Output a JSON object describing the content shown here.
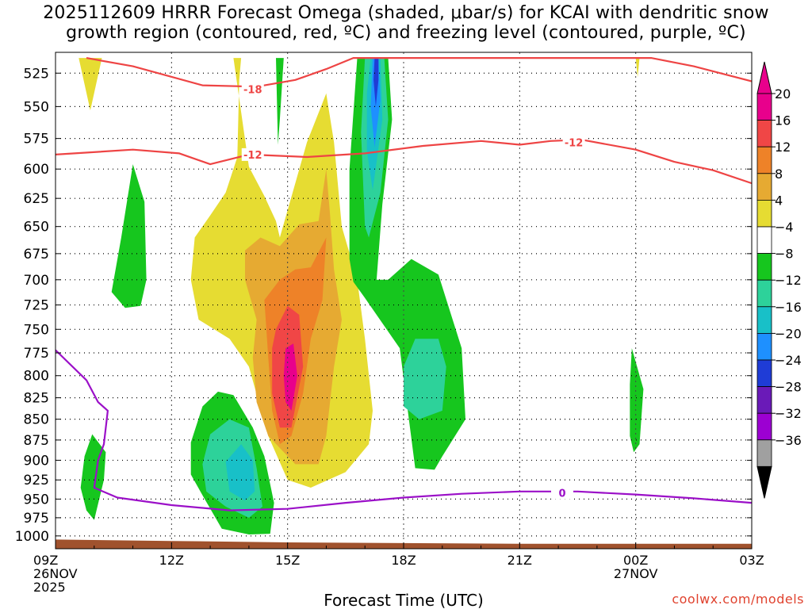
{
  "title": {
    "line1": "2025112609 HRRR Forecast Omega (shaded, μbar/s) for KCAI with dendritic snow",
    "line2": "growth region (contoured, red, ºC) and freezing level (contoured, purple, ºC)"
  },
  "credit": "coolwx.com/models",
  "chart_data": {
    "type": "time-height contour",
    "xlabel": "Forecast Time (UTC)",
    "x_range_hours": [
      0,
      18
    ],
    "x_ticks": [
      {
        "h": 0,
        "lines": [
          "09Z",
          "26NOV",
          "2025"
        ]
      },
      {
        "h": 3,
        "lines": [
          "12Z"
        ]
      },
      {
        "h": 6,
        "lines": [
          "15Z"
        ]
      },
      {
        "h": 9,
        "lines": [
          "18Z"
        ]
      },
      {
        "h": 12,
        "lines": [
          "21Z"
        ]
      },
      {
        "h": 15,
        "lines": [
          "00Z",
          "27NOV"
        ]
      },
      {
        "h": 18,
        "lines": [
          "03Z"
        ]
      }
    ],
    "y_ticks": [
      525,
      550,
      575,
      600,
      625,
      650,
      675,
      700,
      725,
      750,
      775,
      800,
      825,
      850,
      875,
      900,
      925,
      950,
      975,
      1000
    ],
    "y_range_mb": [
      510,
      1018
    ],
    "y_scale": "log-pressure",
    "grid": true,
    "colorbar": {
      "ticks": [
        "20",
        "16",
        "12",
        "8",
        "4",
        "−4",
        "−8",
        "−12",
        "−16",
        "−20",
        "−24",
        "−28",
        "−32",
        "−36"
      ],
      "bins": [
        {
          "range": [
            -36,
            -32
          ],
          "color": "#a0a0a0"
        },
        {
          "range": [
            -32,
            -28
          ],
          "color": "#9c00d2"
        },
        {
          "range": [
            -28,
            -24
          ],
          "color": "#6a1ab8"
        },
        {
          "range": [
            -24,
            -20
          ],
          "color": "#1f3cd6"
        },
        {
          "range": [
            -20,
            -16
          ],
          "color": "#1e90ff"
        },
        {
          "range": [
            -16,
            -12
          ],
          "color": "#18c0c8"
        },
        {
          "range": [
            -12,
            -8
          ],
          "color": "#2dd29a"
        },
        {
          "range": [
            -8,
            -4
          ],
          "color": "#16c61e"
        },
        {
          "range": [
            -4,
            4
          ],
          "color": "#ffffff"
        },
        {
          "range": [
            4,
            8
          ],
          "color": "#e6dc32"
        },
        {
          "range": [
            8,
            12
          ],
          "color": "#e6aa32"
        },
        {
          "range": [
            12,
            16
          ],
          "color": "#ee8228"
        },
        {
          "range": [
            16,
            20
          ],
          "color": "#f04646"
        },
        {
          "range": [
            20,
            24
          ],
          "color": "#e8008c"
        }
      ],
      "below_color": "#000000",
      "above_color": "#e8008c"
    },
    "shaded_regions": [
      {
        "value_bin": [
          4,
          8
        ],
        "points": [
          [
            0.6,
            514
          ],
          [
            0.9,
            553
          ],
          [
            1.2,
            514
          ]
        ]
      },
      {
        "value_bin": [
          4,
          8
        ],
        "points": [
          [
            15.0,
            514
          ],
          [
            15.05,
            528
          ],
          [
            15.1,
            514
          ]
        ]
      },
      {
        "value_bin": [
          4,
          8
        ],
        "points": [
          [
            4.6,
            514
          ],
          [
            5.0,
            598
          ],
          [
            5.4,
            623
          ],
          [
            5.7,
            645
          ],
          [
            5.8,
            660
          ],
          [
            6.5,
            578
          ],
          [
            7.0,
            540
          ],
          [
            7.2,
            578
          ],
          [
            7.4,
            650
          ],
          [
            7.8,
            700
          ],
          [
            8.0,
            760
          ],
          [
            8.2,
            840
          ],
          [
            8.1,
            880
          ],
          [
            7.5,
            915
          ],
          [
            6.6,
            935
          ],
          [
            6.0,
            925
          ],
          [
            5.5,
            870
          ],
          [
            5.0,
            790
          ],
          [
            4.5,
            760
          ],
          [
            3.7,
            740
          ],
          [
            3.5,
            700
          ],
          [
            3.6,
            660
          ],
          [
            4.0,
            640
          ],
          [
            4.4,
            620
          ],
          [
            4.7,
            590
          ],
          [
            4.75,
            530
          ],
          [
            4.8,
            514
          ]
        ]
      },
      {
        "value_bin": [
          8,
          12
        ],
        "points": [
          [
            4.9,
            672
          ],
          [
            5.3,
            660
          ],
          [
            5.8,
            668
          ],
          [
            6.3,
            648
          ],
          [
            6.8,
            645
          ],
          [
            7.0,
            600
          ],
          [
            7.1,
            640
          ],
          [
            7.2,
            690
          ],
          [
            7.4,
            740
          ],
          [
            7.2,
            790
          ],
          [
            7.0,
            870
          ],
          [
            6.8,
            905
          ],
          [
            6.2,
            905
          ],
          [
            5.5,
            870
          ],
          [
            5.2,
            830
          ],
          [
            5.1,
            780
          ],
          [
            5.2,
            740
          ],
          [
            4.9,
            700
          ]
        ]
      },
      {
        "value_bin": [
          12,
          16
        ],
        "points": [
          [
            5.4,
            720
          ],
          [
            5.8,
            700
          ],
          [
            6.2,
            690
          ],
          [
            6.6,
            688
          ],
          [
            7.0,
            660
          ],
          [
            6.9,
            720
          ],
          [
            6.6,
            760
          ],
          [
            6.4,
            820
          ],
          [
            6.1,
            870
          ],
          [
            5.8,
            880
          ],
          [
            5.6,
            840
          ],
          [
            5.5,
            780
          ]
        ]
      },
      {
        "value_bin": [
          16,
          20
        ],
        "points": [
          [
            5.7,
            750
          ],
          [
            6.0,
            726
          ],
          [
            6.3,
            735
          ],
          [
            6.4,
            790
          ],
          [
            6.1,
            860
          ],
          [
            5.8,
            860
          ],
          [
            5.6,
            820
          ],
          [
            5.6,
            770
          ]
        ]
      },
      {
        "value_bin": [
          20,
          24
        ],
        "points": [
          [
            5.95,
            770
          ],
          [
            6.15,
            765
          ],
          [
            6.25,
            800
          ],
          [
            6.1,
            840
          ],
          [
            5.95,
            830
          ],
          [
            5.9,
            800
          ]
        ]
      },
      {
        "value_bin": [
          -8,
          -4
        ],
        "points": [
          [
            5.7,
            514
          ],
          [
            5.75,
            580
          ],
          [
            5.8,
            560
          ],
          [
            5.9,
            514
          ]
        ]
      },
      {
        "value_bin": [
          -8,
          -4
        ],
        "points": [
          [
            2.0,
            596
          ],
          [
            2.3,
            628
          ],
          [
            2.35,
            700
          ],
          [
            2.2,
            726
          ],
          [
            1.8,
            728
          ],
          [
            1.45,
            712
          ],
          [
            1.7,
            660
          ]
        ]
      },
      {
        "value_bin": [
          -8,
          -4
        ],
        "points": [
          [
            0.95,
            868
          ],
          [
            1.3,
            890
          ],
          [
            1.25,
            925
          ],
          [
            1.0,
            978
          ],
          [
            0.8,
            965
          ],
          [
            0.65,
            935
          ],
          [
            0.75,
            895
          ]
        ]
      },
      {
        "value_bin": [
          -8,
          -4
        ],
        "points": [
          [
            3.5,
            878
          ],
          [
            3.8,
            835
          ],
          [
            4.2,
            818
          ],
          [
            4.6,
            822
          ],
          [
            5.1,
            860
          ],
          [
            5.4,
            895
          ],
          [
            5.65,
            955
          ],
          [
            5.55,
            997
          ],
          [
            5.0,
            998
          ],
          [
            4.3,
            990
          ],
          [
            3.8,
            945
          ],
          [
            3.5,
            918
          ]
        ]
      },
      {
        "value_bin": [
          -8,
          -4
        ],
        "points": [
          [
            7.8,
            514
          ],
          [
            8.6,
            514
          ],
          [
            8.7,
            560
          ],
          [
            8.45,
            630
          ],
          [
            8.3,
            700
          ],
          [
            8.6,
            700
          ],
          [
            9.2,
            680
          ],
          [
            9.9,
            695
          ],
          [
            10.5,
            770
          ],
          [
            10.6,
            850
          ],
          [
            10.0,
            895
          ],
          [
            9.8,
            912
          ],
          [
            9.3,
            910
          ],
          [
            8.9,
            770
          ],
          [
            8.0,
            718
          ],
          [
            7.7,
            702
          ],
          [
            7.6,
            680
          ],
          [
            7.6,
            600
          ]
        ]
      },
      {
        "value_bin": [
          -8,
          -4
        ],
        "points": [
          [
            14.9,
            770
          ],
          [
            15.2,
            815
          ],
          [
            15.1,
            880
          ],
          [
            14.95,
            890
          ],
          [
            14.85,
            870
          ],
          [
            14.85,
            810
          ]
        ]
      },
      {
        "value_bin": [
          -12,
          -8
        ],
        "points": [
          [
            3.8,
            905
          ],
          [
            4.0,
            868
          ],
          [
            4.5,
            850
          ],
          [
            5.0,
            860
          ],
          [
            5.2,
            910
          ],
          [
            5.35,
            960
          ],
          [
            5.0,
            975
          ],
          [
            4.4,
            960
          ],
          [
            3.9,
            940
          ]
        ]
      },
      {
        "value_bin": [
          -12,
          -8
        ],
        "points": [
          [
            9.0,
            790
          ],
          [
            9.3,
            760
          ],
          [
            9.9,
            760
          ],
          [
            10.1,
            790
          ],
          [
            10.0,
            840
          ],
          [
            9.4,
            850
          ],
          [
            9.0,
            835
          ]
        ]
      },
      {
        "value_bin": [
          -12,
          -8
        ],
        "points": [
          [
            8.0,
            514
          ],
          [
            8.5,
            514
          ],
          [
            8.6,
            560
          ],
          [
            8.4,
            620
          ],
          [
            8.1,
            660
          ],
          [
            8.0,
            650
          ],
          [
            7.9,
            570
          ]
        ]
      },
      {
        "value_bin": [
          -16,
          -12
        ],
        "points": [
          [
            4.4,
            902
          ],
          [
            4.8,
            880
          ],
          [
            5.1,
            900
          ],
          [
            5.15,
            940
          ],
          [
            4.9,
            952
          ],
          [
            4.5,
            940
          ]
        ]
      },
      {
        "value_bin": [
          -16,
          -12
        ],
        "points": [
          [
            8.15,
            514
          ],
          [
            8.4,
            514
          ],
          [
            8.45,
            560
          ],
          [
            8.2,
            618
          ],
          [
            8.05,
            585
          ],
          [
            8.05,
            540
          ]
        ]
      },
      {
        "value_bin": [
          -20,
          -16
        ],
        "points": [
          [
            8.2,
            514
          ],
          [
            8.35,
            514
          ],
          [
            8.4,
            545
          ],
          [
            8.25,
            582
          ],
          [
            8.15,
            550
          ]
        ]
      },
      {
        "value_bin": [
          -24,
          -20
        ],
        "points": [
          [
            8.25,
            514
          ],
          [
            8.35,
            514
          ],
          [
            8.35,
            530
          ],
          [
            8.28,
            550
          ],
          [
            8.22,
            530
          ]
        ]
      }
    ],
    "contours": [
      {
        "value": -18,
        "color": "#ee4444",
        "label_at": [
          5.1,
          537
        ],
        "points": [
          [
            0.8,
            514
          ],
          [
            2.0,
            520
          ],
          [
            3.8,
            534
          ],
          [
            5.2,
            535
          ],
          [
            6.2,
            530
          ],
          [
            7.0,
            522
          ],
          [
            7.7,
            514
          ],
          [
            15.4,
            514
          ],
          [
            16.5,
            520
          ],
          [
            18.0,
            531
          ]
        ]
      },
      {
        "value": -12,
        "color": "#ee4444",
        "label_at": [
          5.1,
          588
        ],
        "label2_at": [
          13.4,
          578
        ],
        "points": [
          [
            0,
            588
          ],
          [
            2.0,
            584
          ],
          [
            3.2,
            587
          ],
          [
            4.0,
            596
          ],
          [
            5.0,
            588
          ],
          [
            6.5,
            590
          ],
          [
            8.0,
            587
          ],
          [
            9.5,
            581
          ],
          [
            11.0,
            577
          ],
          [
            12.0,
            580
          ],
          [
            12.8,
            577
          ],
          [
            13.6,
            576
          ],
          [
            15.0,
            584
          ],
          [
            16.0,
            594
          ],
          [
            17.0,
            601
          ],
          [
            18.0,
            612
          ]
        ]
      },
      {
        "value": 0,
        "color": "#9b10c8",
        "label_at": [
          13.1,
          942
        ],
        "points": [
          [
            0,
            772
          ],
          [
            0.8,
            805
          ],
          [
            1.1,
            830
          ],
          [
            1.35,
            840
          ],
          [
            1.25,
            880
          ],
          [
            1.1,
            900
          ],
          [
            1.0,
            935
          ],
          [
            1.6,
            948
          ],
          [
            3.0,
            958
          ],
          [
            4.5,
            965
          ],
          [
            6.0,
            963
          ],
          [
            7.5,
            955
          ],
          [
            9.0,
            948
          ],
          [
            10.5,
            943
          ],
          [
            12.0,
            940
          ],
          [
            13.5,
            940
          ],
          [
            15.0,
            944
          ],
          [
            16.5,
            949
          ],
          [
            18.0,
            955
          ]
        ]
      }
    ],
    "terrain": {
      "color": "#a0522d",
      "points": [
        [
          0,
          1005
        ],
        [
          3,
          1007
        ],
        [
          6,
          1009
        ],
        [
          9,
          1010
        ],
        [
          12,
          1011
        ],
        [
          15,
          1011
        ],
        [
          18,
          1011
        ]
      ]
    }
  }
}
